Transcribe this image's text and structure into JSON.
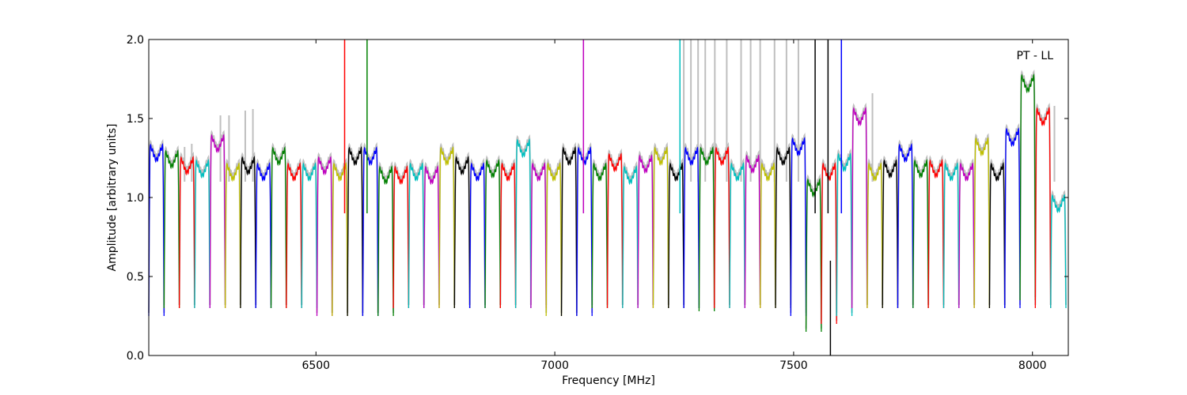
{
  "chart_data": {
    "type": "line",
    "title": "",
    "annotation": "PT - LL",
    "xlabel": "Frequency [MHz]",
    "ylabel": "Amplitude [arbitrary units]",
    "xlim": [
      6150,
      8075
    ],
    "ylim": [
      0.0,
      2.0
    ],
    "xticks": [
      6500,
      7000,
      7500,
      8000
    ],
    "xtick_labels": [
      "6500",
      "7000",
      "7500",
      "8000"
    ],
    "yticks": [
      0.0,
      0.5,
      1.0,
      1.5,
      2.0
    ],
    "ytick_labels": [
      "0.0",
      "0.5",
      "1.0",
      "1.5",
      "2.0"
    ],
    "grid": false,
    "legend": "none",
    "raw_color": "#bfbfbf",
    "palette": [
      "#0000ff",
      "#008000",
      "#ff0000",
      "#00bfbf",
      "#bf00bf",
      "#bfbf00",
      "#000000"
    ],
    "channel_width_mhz": 32,
    "channel_starts_mhz": [
      6150,
      6182,
      6214,
      6246,
      6278,
      6310,
      6342,
      6374,
      6406,
      6438,
      6470,
      6502,
      6534,
      6566,
      6598,
      6630,
      6662,
      6694,
      6726,
      6758,
      6790,
      6822,
      6854,
      6886,
      6918,
      6950,
      6982,
      7014,
      7046,
      7078,
      7110,
      7142,
      7174,
      7206,
      7238,
      7270,
      7302,
      7334,
      7366,
      7398,
      7430,
      7462,
      7494,
      7526,
      7558,
      7590,
      7622,
      7654,
      7686,
      7718,
      7750,
      7782,
      7814,
      7846,
      7878,
      7910,
      7942,
      7974,
      8006,
      8038
    ],
    "channel_peaks": [
      1.32,
      1.28,
      1.24,
      1.22,
      1.38,
      1.2,
      1.24,
      1.2,
      1.3,
      1.2,
      1.2,
      1.24,
      1.2,
      1.3,
      1.3,
      1.18,
      1.18,
      1.2,
      1.18,
      1.3,
      1.24,
      1.2,
      1.22,
      1.2,
      1.35,
      1.2,
      1.2,
      1.3,
      1.3,
      1.2,
      1.26,
      1.18,
      1.25,
      1.3,
      1.2,
      1.3,
      1.3,
      1.3,
      1.2,
      1.25,
      1.2,
      1.3,
      1.36,
      1.1,
      1.2,
      1.26,
      1.55,
      1.2,
      1.22,
      1.32,
      1.22,
      1.22,
      1.2,
      1.2,
      1.36,
      1.2,
      1.42,
      1.76,
      1.55,
      1.0
    ],
    "channel_troughs": [
      0.25,
      0.3,
      0.3,
      0.3,
      0.3,
      0.3,
      0.3,
      0.3,
      0.3,
      0.3,
      0.3,
      0.25,
      0.25,
      0.25,
      0.25,
      0.25,
      0.3,
      0.3,
      0.3,
      0.3,
      0.3,
      0.3,
      0.3,
      0.3,
      0.3,
      0.3,
      0.25,
      0.25,
      0.25,
      0.3,
      0.3,
      0.3,
      0.3,
      0.3,
      0.3,
      0.3,
      0.28,
      0.3,
      0.3,
      0.3,
      0.3,
      0.3,
      0.25,
      0.15,
      0.2,
      0.25,
      0.3,
      0.3,
      0.3,
      0.3,
      0.3,
      0.3,
      0.3,
      0.3,
      0.3,
      0.3,
      0.3,
      0.35,
      0.3,
      0.3
    ],
    "rfi_spikes": [
      {
        "x": 6560,
        "y": 2.0,
        "color": "#ff0000"
      },
      {
        "x": 6607,
        "y": 2.0,
        "color": "#008000"
      },
      {
        "x": 7060,
        "y": 2.0,
        "color": "#bf00bf"
      },
      {
        "x": 7262,
        "y": 2.0,
        "color": "#00bfbf"
      },
      {
        "x": 7545,
        "y": 2.0,
        "color": "#000000"
      },
      {
        "x": 7572,
        "y": 2.0,
        "color": "#000000"
      },
      {
        "x": 7600,
        "y": 2.0,
        "color": "#0000ff"
      },
      {
        "x": 7577,
        "y": 0.0,
        "color": "#000000"
      }
    ],
    "raw_spikes": [
      {
        "x": 6225,
        "y": 1.32
      },
      {
        "x": 6240,
        "y": 1.34
      },
      {
        "x": 6300,
        "y": 1.52
      },
      {
        "x": 6318,
        "y": 1.52
      },
      {
        "x": 6352,
        "y": 1.55
      },
      {
        "x": 6368,
        "y": 1.56
      },
      {
        "x": 7270,
        "y": 2.0
      },
      {
        "x": 7285,
        "y": 2.0
      },
      {
        "x": 7300,
        "y": 2.0
      },
      {
        "x": 7315,
        "y": 2.0
      },
      {
        "x": 7335,
        "y": 2.0
      },
      {
        "x": 7360,
        "y": 2.0
      },
      {
        "x": 7390,
        "y": 2.0
      },
      {
        "x": 7410,
        "y": 2.0
      },
      {
        "x": 7430,
        "y": 2.0
      },
      {
        "x": 7460,
        "y": 2.0
      },
      {
        "x": 7485,
        "y": 2.0
      },
      {
        "x": 7510,
        "y": 2.0
      },
      {
        "x": 7665,
        "y": 1.66
      },
      {
        "x": 8046,
        "y": 1.58
      }
    ]
  }
}
